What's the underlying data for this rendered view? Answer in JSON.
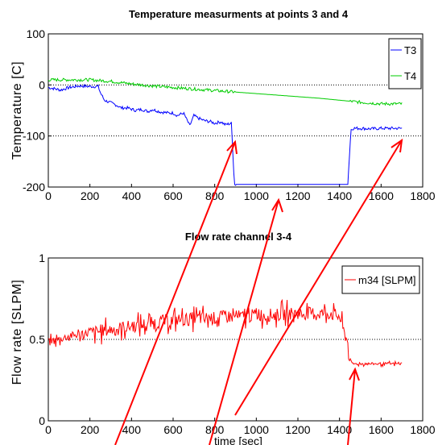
{
  "chart_data": [
    {
      "type": "line",
      "title": "Temperature measurments at points 3 and 4",
      "ylabel": "Temperature [C]",
      "xlabel": "",
      "xlim": [
        0,
        1800
      ],
      "ylim": [
        -200,
        100
      ],
      "xticks": [
        0,
        200,
        400,
        600,
        800,
        1000,
        1200,
        1400,
        1600,
        1800
      ],
      "yticks": [
        -200,
        -100,
        0,
        100
      ],
      "grid_y_dotted": [
        0,
        -100
      ],
      "legend_position": "top-right",
      "series": [
        {
          "name": "T3",
          "color": "#0000ff",
          "x": [
            0,
            60,
            100,
            150,
            200,
            240,
            250,
            270,
            300,
            330,
            350,
            380,
            420,
            450,
            480,
            500,
            540,
            580,
            600,
            620,
            650,
            680,
            700,
            720,
            750,
            780,
            800,
            830,
            850,
            880,
            895,
            905,
            950,
            1000,
            1100,
            1200,
            1300,
            1400,
            1440,
            1455,
            1465,
            1500,
            1550,
            1600,
            1650,
            1700
          ],
          "values": [
            -5,
            -10,
            -5,
            -2,
            -3,
            -3,
            -15,
            -30,
            -35,
            -40,
            -45,
            -45,
            -50,
            -48,
            -52,
            -48,
            -53,
            -55,
            -55,
            -60,
            -55,
            -80,
            -60,
            -65,
            -70,
            -72,
            -75,
            -72,
            -78,
            -75,
            -195,
            -195,
            -195,
            -195,
            -195,
            -195,
            -195,
            -195,
            -195,
            -88,
            -85,
            -85,
            -86,
            -85,
            -85,
            -85
          ]
        },
        {
          "name": "T4",
          "color": "#00cc00",
          "x": [
            0,
            100,
            200,
            300,
            400,
            500,
            600,
            700,
            800,
            900,
            1000,
            1100,
            1200,
            1300,
            1400,
            1500,
            1600,
            1700
          ],
          "values": [
            10,
            10,
            10,
            7,
            2,
            -2,
            -5,
            -8,
            -11,
            -14,
            -17,
            -20,
            -23,
            -26,
            -30,
            -34,
            -37,
            -37
          ]
        }
      ]
    },
    {
      "type": "line",
      "title": "Flow rate channel 3-4",
      "ylabel": "Flow rate [SLPM]",
      "xlabel": "time [sec]",
      "xlim": [
        0,
        1800
      ],
      "ylim": [
        0,
        1
      ],
      "xticks": [
        0,
        200,
        400,
        600,
        800,
        1000,
        1200,
        1400,
        1600,
        1800
      ],
      "yticks": [
        0,
        0.5,
        1
      ],
      "grid_y_dotted": [
        0.5
      ],
      "legend_position": "top-right",
      "series": [
        {
          "name": "m34 [SLPM]",
          "color": "#ff0000",
          "x": [
            0,
            50,
            100,
            150,
            200,
            250,
            300,
            350,
            400,
            450,
            500,
            550,
            600,
            650,
            700,
            750,
            800,
            850,
            900,
            950,
            1000,
            1050,
            1100,
            1150,
            1200,
            1250,
            1300,
            1350,
            1400,
            1420,
            1440,
            1450,
            1460,
            1500,
            1550,
            1600,
            1650,
            1700
          ],
          "values": [
            0.48,
            0.5,
            0.52,
            0.53,
            0.54,
            0.55,
            0.56,
            0.57,
            0.58,
            0.59,
            0.6,
            0.61,
            0.62,
            0.62,
            0.63,
            0.63,
            0.63,
            0.64,
            0.64,
            0.64,
            0.65,
            0.65,
            0.65,
            0.66,
            0.66,
            0.66,
            0.66,
            0.66,
            0.64,
            0.55,
            0.48,
            0.38,
            0.35,
            0.35,
            0.35,
            0.35,
            0.35,
            0.35
          ]
        }
      ]
    }
  ]
}
